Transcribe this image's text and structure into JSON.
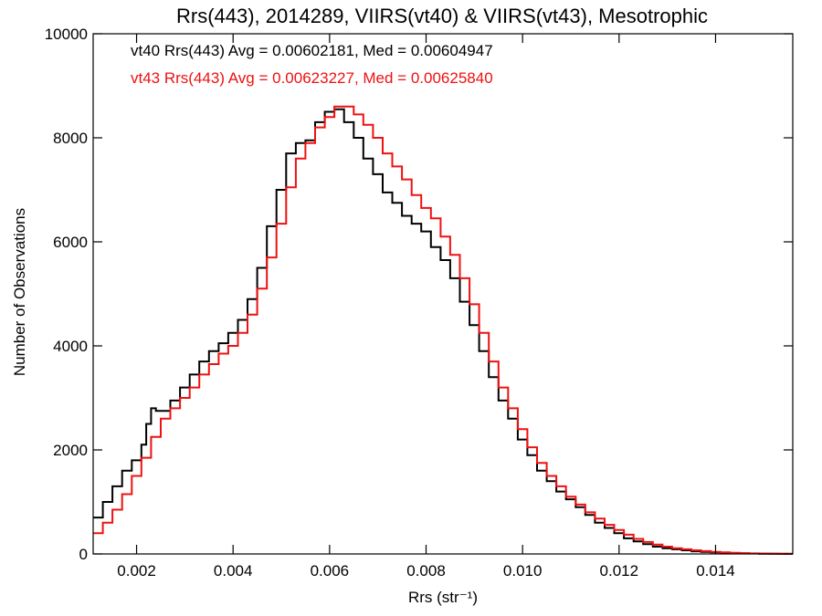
{
  "chart_data": {
    "type": "line",
    "title": "Rrs(443), 2014289, VIIRS(vt40) & VIIRS(vt43), Mesotrophic",
    "xlabel": "Rrs (str⁻¹)",
    "ylabel": "Number of Observations",
    "xlim": [
      0.0011,
      0.0156
    ],
    "ylim": [
      0,
      10000
    ],
    "x_ticks": [
      0.002,
      0.004,
      0.006,
      0.008,
      0.01,
      0.012,
      0.014
    ],
    "x_tick_labels": [
      "0.002",
      "0.004",
      "0.006",
      "0.008",
      "0.010",
      "0.012",
      "0.014"
    ],
    "y_ticks": [
      0,
      2000,
      4000,
      6000,
      8000,
      10000
    ],
    "y_tick_labels": [
      "0",
      "2000",
      "4000",
      "6000",
      "8000",
      "10000"
    ],
    "grid": false,
    "legend_placement": "top-left",
    "series": [
      {
        "name": "vt40",
        "color": "#000000",
        "annotation": "vt40 Rrs(443) Avg = 0.00602181, Med = 0.00604947",
        "x": [
          0.0011,
          0.0013,
          0.0015,
          0.0017,
          0.0019,
          0.0021,
          0.0022,
          0.0023,
          0.0024,
          0.0025,
          0.0027,
          0.0029,
          0.0031,
          0.0033,
          0.0035,
          0.0037,
          0.0039,
          0.0041,
          0.0043,
          0.0045,
          0.0047,
          0.0049,
          0.0051,
          0.0053,
          0.0055,
          0.0057,
          0.0059,
          0.0061,
          0.0063,
          0.0065,
          0.0067,
          0.0069,
          0.0071,
          0.0073,
          0.0075,
          0.0077,
          0.0079,
          0.0081,
          0.0083,
          0.0085,
          0.0087,
          0.0089,
          0.0091,
          0.0093,
          0.0095,
          0.0097,
          0.0099,
          0.0101,
          0.0103,
          0.0105,
          0.0107,
          0.0109,
          0.0111,
          0.0113,
          0.0115,
          0.0117,
          0.0119,
          0.0121,
          0.0123,
          0.0125,
          0.0127,
          0.0129,
          0.0131,
          0.0133,
          0.0135,
          0.0137,
          0.0139,
          0.0141,
          0.0143,
          0.0145,
          0.0147,
          0.0149,
          0.0151,
          0.0153,
          0.0155
        ],
        "y": [
          700,
          1000,
          1300,
          1600,
          1800,
          2100,
          2500,
          2800,
          2750,
          2750,
          2950,
          3200,
          3450,
          3700,
          3900,
          4050,
          4250,
          4500,
          4900,
          5500,
          6300,
          7000,
          7700,
          7900,
          7950,
          8300,
          8500,
          8550,
          8300,
          8000,
          7600,
          7300,
          6950,
          6750,
          6500,
          6350,
          6200,
          5900,
          5650,
          5300,
          4850,
          4400,
          3900,
          3400,
          2950,
          2600,
          2200,
          1900,
          1600,
          1400,
          1200,
          1050,
          900,
          750,
          600,
          500,
          400,
          300,
          240,
          190,
          140,
          110,
          90,
          70,
          50,
          40,
          30,
          20,
          15,
          10,
          8,
          5,
          3,
          2,
          1
        ]
      },
      {
        "name": "vt43",
        "color": "#ee1111",
        "annotation": "vt43 Rrs(443) Avg = 0.00623227, Med = 0.00625840",
        "x": [
          0.0011,
          0.0013,
          0.0015,
          0.0017,
          0.0019,
          0.0021,
          0.0023,
          0.0025,
          0.0027,
          0.0029,
          0.0031,
          0.0033,
          0.0035,
          0.0037,
          0.0039,
          0.0041,
          0.0043,
          0.0045,
          0.0047,
          0.0049,
          0.0051,
          0.0053,
          0.0055,
          0.0057,
          0.0059,
          0.0061,
          0.0063,
          0.0065,
          0.0067,
          0.0069,
          0.0071,
          0.0073,
          0.0075,
          0.0077,
          0.0079,
          0.0081,
          0.0083,
          0.0085,
          0.0087,
          0.0089,
          0.0091,
          0.0093,
          0.0095,
          0.0097,
          0.0099,
          0.0101,
          0.0103,
          0.0105,
          0.0107,
          0.0109,
          0.0111,
          0.0113,
          0.0115,
          0.0117,
          0.0119,
          0.0121,
          0.0123,
          0.0125,
          0.0127,
          0.0129,
          0.0131,
          0.0133,
          0.0135,
          0.0137,
          0.0139,
          0.0141,
          0.0143,
          0.0145,
          0.0147,
          0.0149,
          0.0151,
          0.0153,
          0.0155
        ],
        "y": [
          400,
          600,
          850,
          1150,
          1500,
          1850,
          2250,
          2600,
          2800,
          3000,
          3200,
          3450,
          3650,
          3850,
          4000,
          4250,
          4600,
          5100,
          5700,
          6350,
          7050,
          7600,
          7900,
          8200,
          8400,
          8600,
          8600,
          8450,
          8250,
          8000,
          7700,
          7450,
          7200,
          6900,
          6650,
          6450,
          6100,
          5750,
          5300,
          4800,
          4250,
          3700,
          3200,
          2800,
          2400,
          2050,
          1750,
          1500,
          1300,
          1100,
          950,
          800,
          680,
          560,
          460,
          370,
          290,
          230,
          180,
          140,
          110,
          90,
          70,
          55,
          40,
          30,
          22,
          16,
          11,
          8,
          5,
          3,
          2
        ]
      }
    ]
  }
}
